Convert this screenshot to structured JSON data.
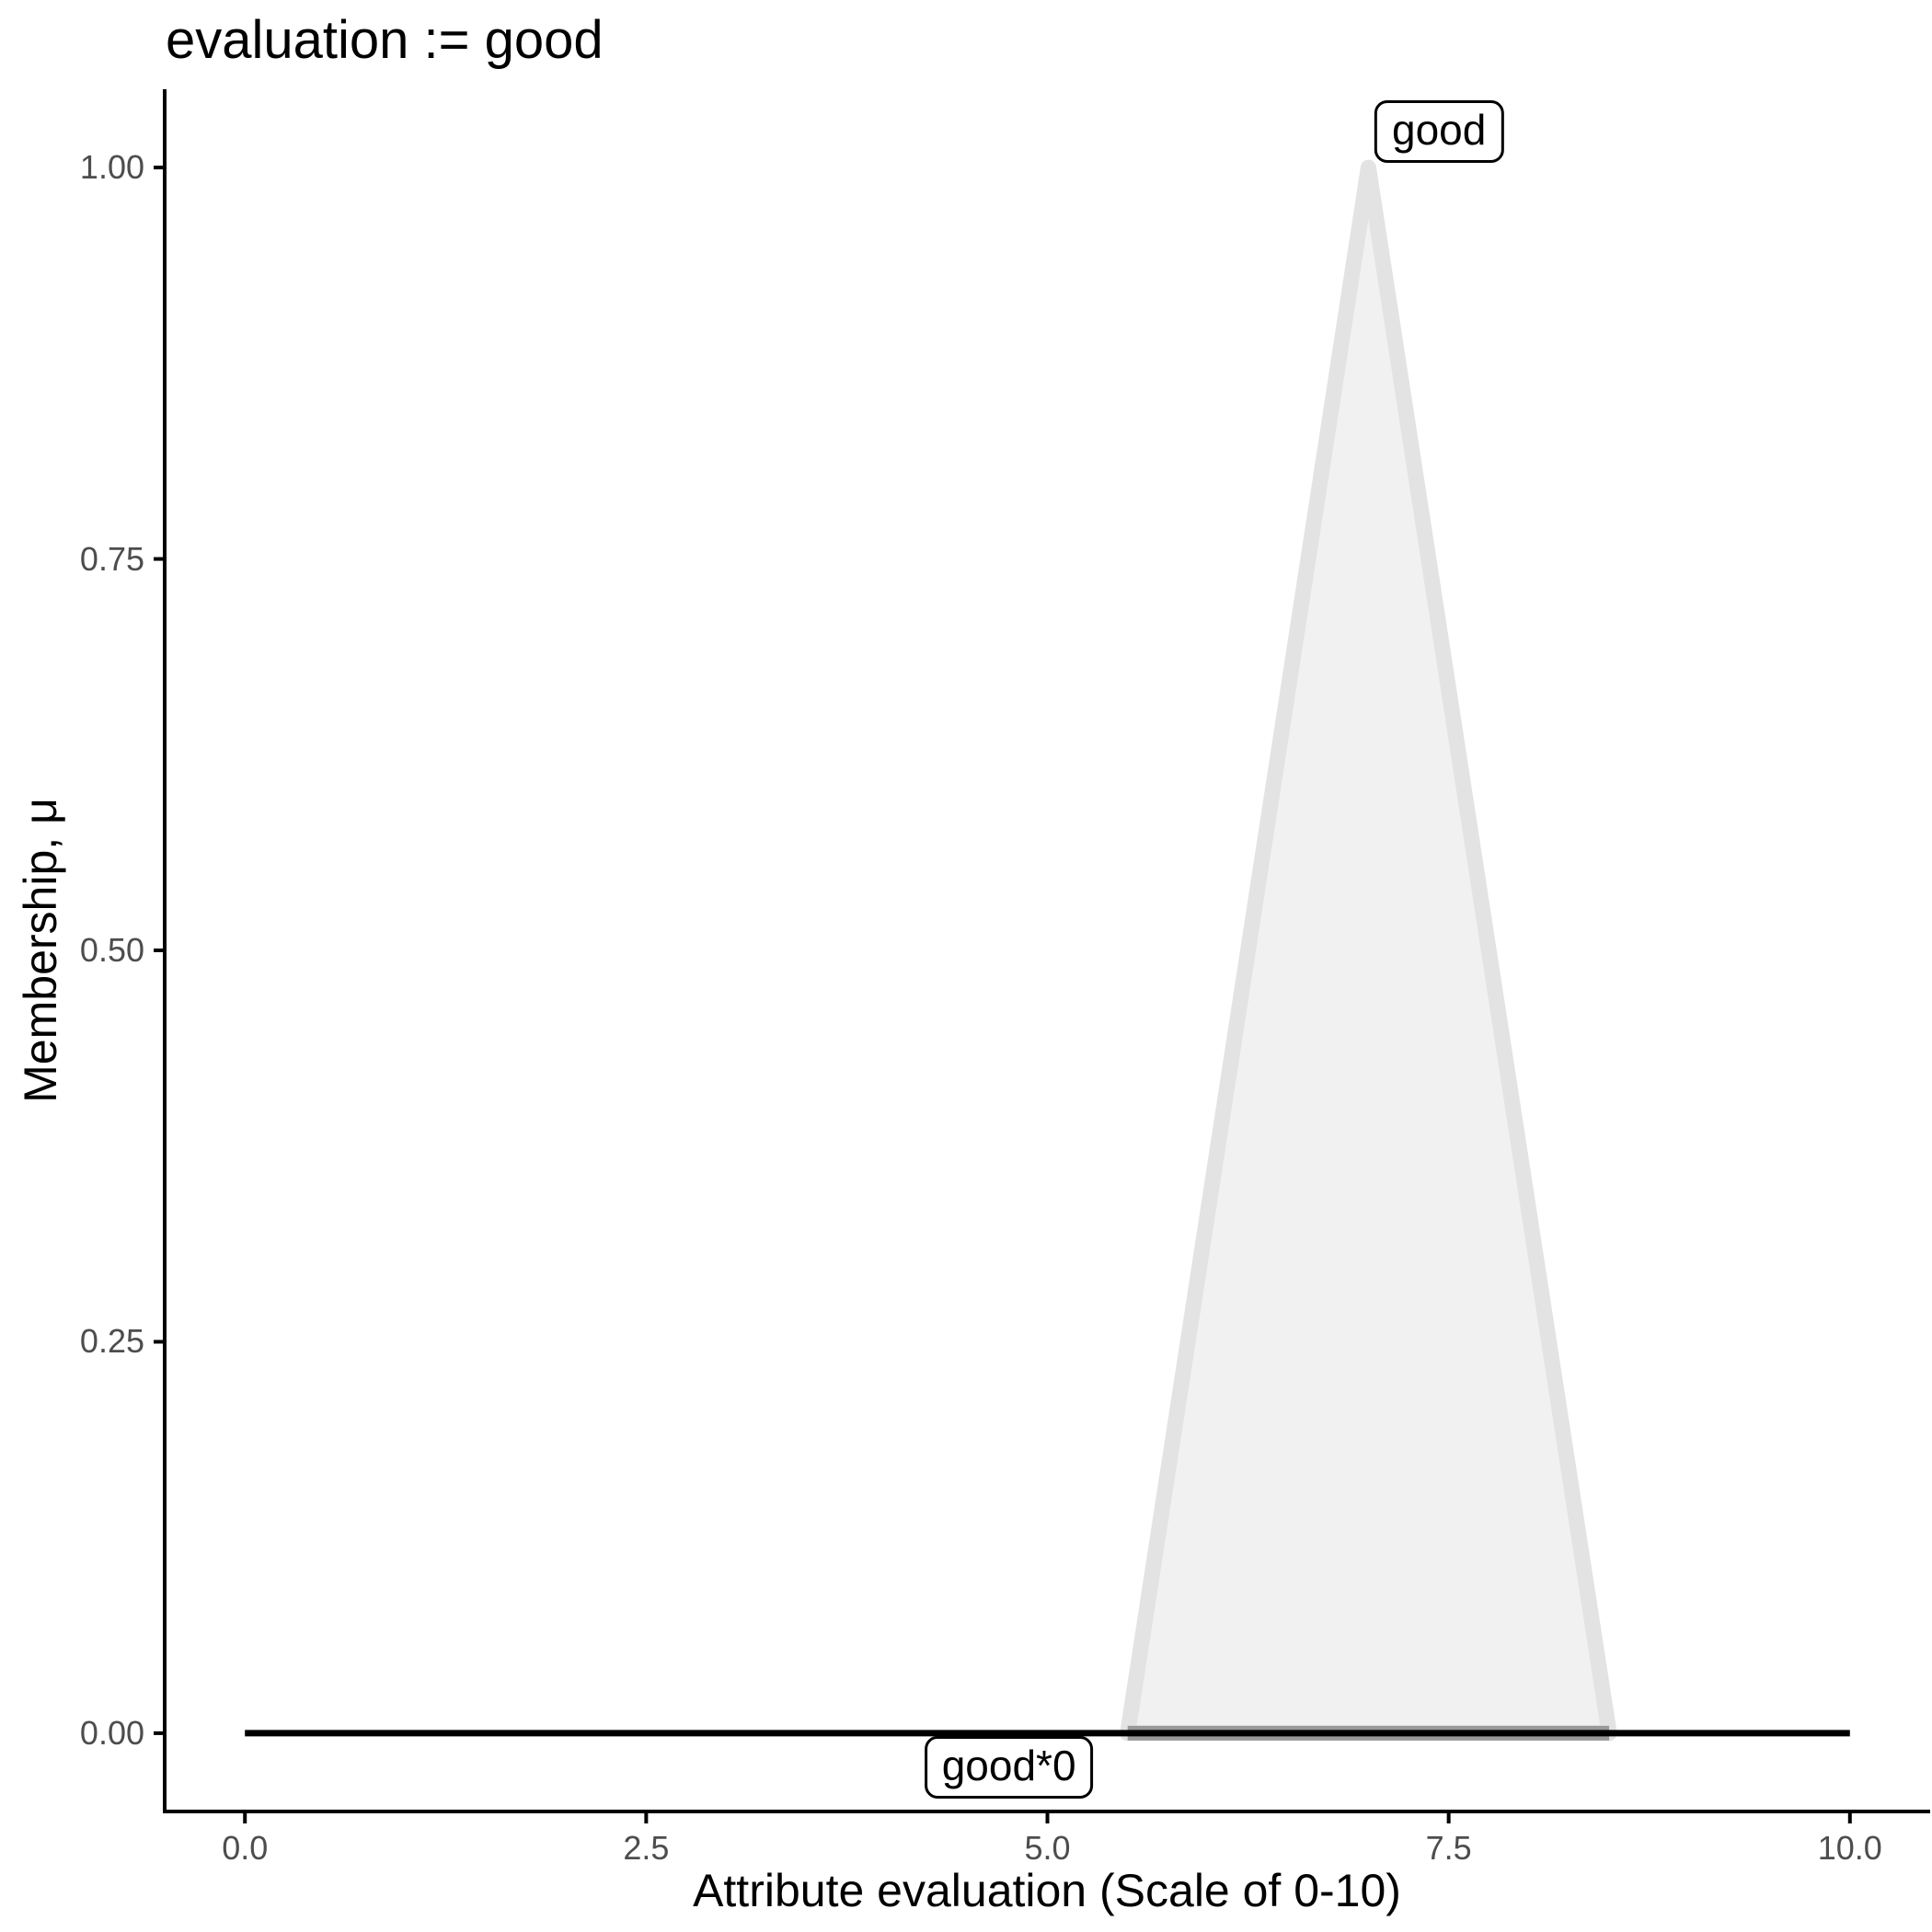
{
  "title": "evaluation := good",
  "colors": {
    "background": "#ffffff",
    "axis_line": "#000000",
    "tick_mark": "#000000",
    "tick_label": "#4d4d4d",
    "title_text": "#000000",
    "axis_title_text": "#000000",
    "annotation_border": "#000000",
    "annotation_bg": "#ffffff",
    "area_fill": "#f1f1f1",
    "area_stroke": "#e3e3e3",
    "base_segment": "#999999",
    "zero_line": "#000000"
  },
  "chart_data": {
    "type": "area",
    "title": "evaluation := good",
    "xlabel": "Attribute evaluation (Scale of 0-10)",
    "ylabel": "Membership, μ",
    "xlim": [
      0,
      10
    ],
    "ylim": [
      0,
      1
    ],
    "expansion": 0.05,
    "grid": false,
    "legend": false,
    "x_ticks": {
      "values": [
        0,
        2.5,
        5,
        7.5,
        10
      ],
      "labels": [
        "0.0",
        "2.5",
        "5.0",
        "7.5",
        "10.0"
      ]
    },
    "y_ticks": {
      "values": [
        0,
        0.25,
        0.5,
        0.75,
        1
      ],
      "labels": [
        "0.00",
        "0.25",
        "0.50",
        "0.75",
        "1.00"
      ]
    },
    "series": [
      {
        "name": "good",
        "kind": "area",
        "description": "triangular fuzzy membership function",
        "points": [
          [
            5.5,
            0
          ],
          [
            7,
            1
          ],
          [
            8.5,
            0
          ]
        ],
        "fill": "#f1f1f1",
        "stroke": "#e3e3e3",
        "stroke_width": 17
      },
      {
        "name": "good-base-segment",
        "kind": "line",
        "points": [
          [
            5.5,
            0
          ],
          [
            8.5,
            0
          ]
        ],
        "color": "#999999",
        "width": 16
      },
      {
        "name": "good*0",
        "kind": "line",
        "description": "membership function scaled by 0 (flat at zero)",
        "points": [
          [
            0,
            0
          ],
          [
            10,
            0
          ]
        ],
        "color": "#000000",
        "width": 7
      }
    ],
    "annotations": [
      {
        "label": "good",
        "x": 7.44,
        "y": 1.023
      },
      {
        "label": "good*0",
        "x": 4.76,
        "y": -0.022
      }
    ]
  }
}
